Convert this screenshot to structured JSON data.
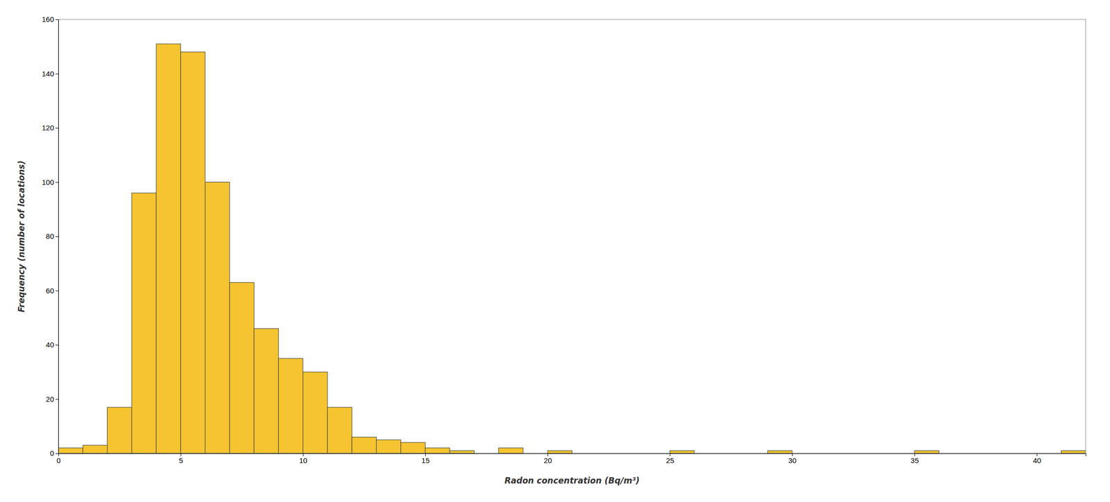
{
  "chart_data": {
    "type": "histogram",
    "bins": [
      0,
      1,
      2,
      3,
      4,
      5,
      6,
      7,
      8,
      9,
      10,
      11,
      12,
      13,
      14,
      15,
      16,
      17,
      18,
      19,
      20,
      21,
      22,
      23,
      24,
      25,
      26,
      27,
      28,
      29,
      30,
      31,
      32,
      33,
      34,
      35,
      36,
      37,
      38,
      39,
      40,
      41,
      42
    ],
    "values": [
      2,
      3,
      17,
      96,
      151,
      148,
      100,
      63,
      46,
      35,
      30,
      17,
      6,
      5,
      4,
      2,
      1,
      0,
      2,
      0,
      1,
      0,
      0,
      0,
      0,
      1,
      0,
      0,
      0,
      1,
      0,
      0,
      0,
      0,
      0,
      1,
      0,
      0,
      0,
      0,
      0,
      1
    ],
    "color": "#F5C430",
    "xlabel": "Radon concentration (Bq/m³)",
    "ylabel": "Frequency (number of locations)",
    "xlim": [
      0,
      42
    ],
    "ylim": [
      0,
      160
    ],
    "xticks": [
      0,
      5,
      10,
      15,
      20,
      25,
      30,
      35,
      40
    ],
    "yticks": [
      0,
      20,
      40,
      60,
      80,
      100,
      120,
      140,
      160
    ],
    "grid": false
  }
}
